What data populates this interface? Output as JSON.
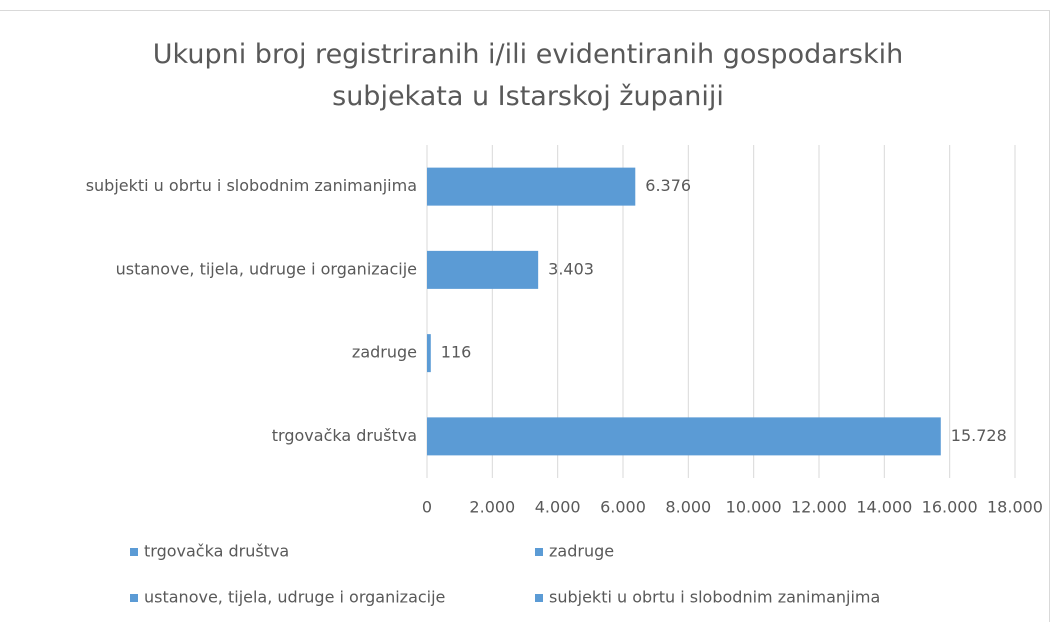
{
  "chart_data": {
    "type": "bar",
    "orientation": "horizontal",
    "title": "Ukupni broj registriranih i/ili evidentiranih gospodarskih subjekata u Istarskoj županiji",
    "categories": [
      "trgovačka društva",
      "zadruge",
      "ustanove, tijela, udruge i organizacije",
      "subjekti u obrtu i slobodnim zanimanjima"
    ],
    "values": [
      15728,
      116,
      3403,
      6376
    ],
    "value_labels": [
      "15.728",
      "116",
      "3.403",
      "6.376"
    ],
    "color": "#5b9bd5",
    "xlim": [
      0,
      18000
    ],
    "xticks": [
      0,
      {
        "value": 2000,
        "label": "2.000"
      },
      {
        "value": 4000,
        "label": "4.000"
      },
      {
        "value": 6000,
        "label": "6.000"
      },
      {
        "value": 8000,
        "label": "8.000"
      },
      {
        "value": 10000,
        "label": "10.000"
      },
      {
        "value": 12000,
        "label": "12.000"
      },
      {
        "value": 14000,
        "label": "14.000"
      },
      {
        "value": 16000,
        "label": "16.000"
      },
      {
        "value": 18000,
        "label": "18.000"
      }
    ],
    "grid": true,
    "legend": "bottom"
  }
}
